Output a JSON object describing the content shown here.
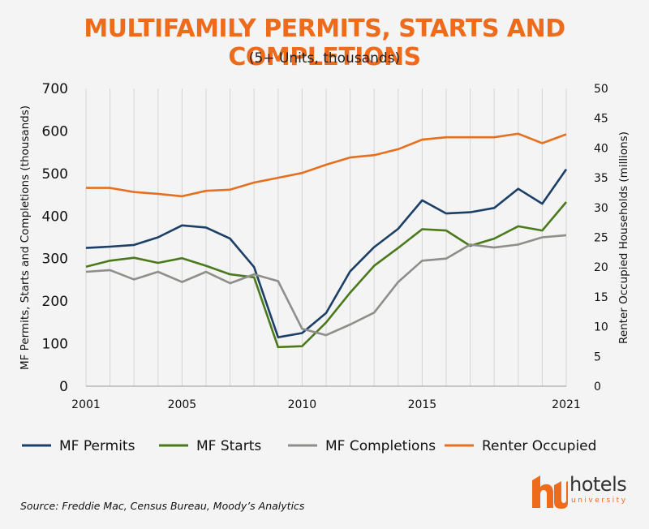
{
  "header": {
    "title": "MULTIFAMILY PERMITS, STARTS AND COMPLETIONS",
    "subtitle": "(5+ Units, thousands)"
  },
  "source": "Source: Freddie Mac, Census Bureau, Moody’s Analytics",
  "logo": {
    "text": "hotels",
    "subtext": "university",
    "icon": "hu-logo-icon",
    "color": "#ee6b1c"
  },
  "chart_data": {
    "type": "line",
    "x": [
      2001,
      2002,
      2003,
      2004,
      2005,
      2006,
      2007,
      2008,
      2009,
      2010,
      2011,
      2012,
      2013,
      2014,
      2015,
      2016,
      2017,
      2018,
      2019,
      2020,
      2021
    ],
    "xticks": [
      "2001",
      "2005",
      "2010",
      "2015",
      "2021"
    ],
    "xlim": [
      2001,
      2021
    ],
    "ylabel": "MF Permits, Starts and Completions (thousands)",
    "ylim": [
      0,
      700
    ],
    "yticks": [
      "0",
      "100",
      "200",
      "300",
      "400",
      "500",
      "600",
      "700"
    ],
    "y2label": "Renter Occupied Households (millions)",
    "y2lim": [
      0,
      50
    ],
    "y2ticks": [
      "0",
      "5",
      "10",
      "15",
      "20",
      "25",
      "30",
      "35",
      "40",
      "45",
      "50"
    ],
    "grid": "vertical",
    "legend": "bottom",
    "series": [
      {
        "name": "MF Permits",
        "color": "#1b3f66",
        "axis": "left",
        "values": [
          325,
          328,
          332,
          350,
          378,
          373,
          347,
          280,
          115,
          125,
          172,
          270,
          327,
          370,
          437,
          406,
          409,
          419,
          464,
          429,
          510
        ]
      },
      {
        "name": "MF Starts",
        "color": "#4a7a1c",
        "axis": "left",
        "values": [
          281,
          295,
          302,
          290,
          301,
          283,
          263,
          256,
          92,
          94,
          150,
          220,
          283,
          325,
          369,
          366,
          330,
          347,
          376,
          366,
          433
        ]
      },
      {
        "name": "MF Completions",
        "color": "#8e8e8a",
        "axis": "left",
        "values": [
          269,
          273,
          251,
          269,
          245,
          269,
          242,
          263,
          247,
          135,
          120,
          145,
          173,
          245,
          295,
          300,
          333,
          326,
          333,
          350,
          355
        ]
      },
      {
        "name": "Renter Occupied",
        "color": "#e5701f",
        "axis": "right",
        "values": [
          33.3,
          33.3,
          32.6,
          32.3,
          31.9,
          32.8,
          33.0,
          34.2,
          35.0,
          35.8,
          37.2,
          38.4,
          38.8,
          39.8,
          41.4,
          41.8,
          41.8,
          41.8,
          42.4,
          40.8,
          42.3
        ]
      }
    ]
  }
}
